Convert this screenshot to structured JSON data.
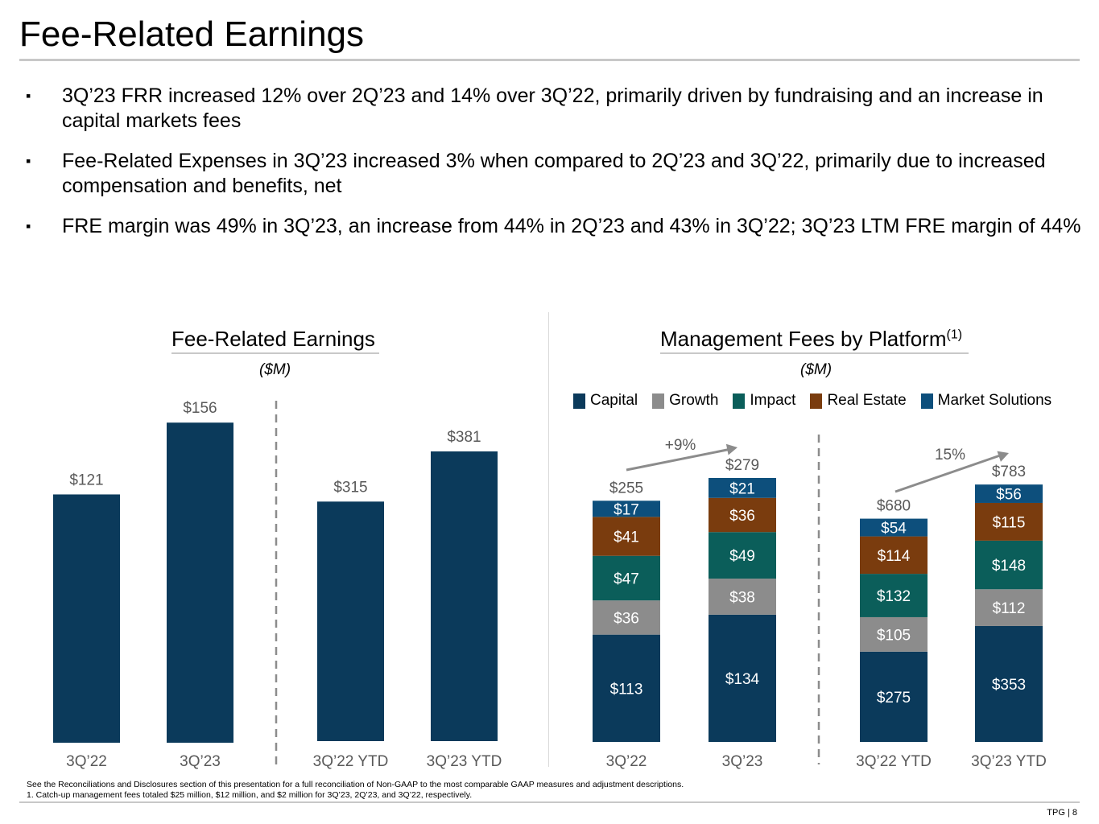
{
  "header": {
    "title": "Fee-Related Earnings"
  },
  "bullets": [
    {
      "marker": "▪",
      "text": "3Q’23 FRR increased 12% over 2Q’23 and 14% over 3Q’22, primarily driven by fundraising and an increase in capital markets fees"
    },
    {
      "marker": "▪",
      "text": "Fee-Related Expenses in 3Q’23 increased 3% when compared to 2Q’23 and 3Q’22, primarily due to increased compensation and benefits, net"
    },
    {
      "marker": "▪",
      "text": "FRE margin was 49% in 3Q’23, an increase from 44% in 2Q’23 and 43% in 3Q’22; 3Q’23 LTM FRE margin of 44%"
    }
  ],
  "colors": {
    "capital": "#0b3a5b",
    "growth": "#8c8c8c",
    "impact": "#0b5e5a",
    "real_estate": "#7a3c0e",
    "market_solutions": "#0d4f7c",
    "axis_text": "#595959",
    "arrow": "#8c8c8c"
  },
  "chart_data": [
    {
      "type": "bar",
      "title": "Fee-Related Earnings",
      "unit": "($M)",
      "groups": [
        {
          "categories": [
            "3Q’22",
            "3Q’23"
          ],
          "values": [
            121,
            156
          ],
          "labels": [
            "$121",
            "$156"
          ]
        },
        {
          "categories": [
            "3Q’22 YTD",
            "3Q’23 YTD"
          ],
          "values": [
            315,
            381
          ],
          "labels": [
            "$315",
            "$381"
          ]
        }
      ]
    },
    {
      "type": "bar",
      "stacked": true,
      "title": "Management Fees by Platform",
      "title_superscript": "(1)",
      "unit": "($M)",
      "legend": [
        "Capital",
        "Growth",
        "Impact",
        "Real Estate",
        "Market Solutions"
      ],
      "groups": [
        {
          "categories": [
            "3Q’22",
            "3Q’23"
          ],
          "series": [
            {
              "name": "Capital",
              "values": [
                113,
                134
              ],
              "labels": [
                "$113",
                "$134"
              ]
            },
            {
              "name": "Growth",
              "values": [
                36,
                38
              ],
              "labels": [
                "$36",
                "$38"
              ]
            },
            {
              "name": "Impact",
              "values": [
                47,
                49
              ],
              "labels": [
                "$47",
                "$49"
              ]
            },
            {
              "name": "Real Estate",
              "values": [
                41,
                36
              ],
              "labels": [
                "$41",
                "$36"
              ]
            },
            {
              "name": "Market Solutions",
              "values": [
                17,
                21
              ],
              "labels": [
                "$17",
                "$21"
              ]
            }
          ],
          "totals": [
            255,
            279
          ],
          "total_labels": [
            "$255",
            "$279"
          ],
          "growth_label": "+9%"
        },
        {
          "categories": [
            "3Q’22 YTD",
            "3Q’23 YTD"
          ],
          "series": [
            {
              "name": "Capital",
              "values": [
                275,
                353
              ],
              "labels": [
                "$275",
                "$353"
              ]
            },
            {
              "name": "Growth",
              "values": [
                105,
                112
              ],
              "labels": [
                "$105",
                "$112"
              ]
            },
            {
              "name": "Impact",
              "values": [
                132,
                148
              ],
              "labels": [
                "$132",
                "$148"
              ]
            },
            {
              "name": "Real Estate",
              "values": [
                114,
                115
              ],
              "labels": [
                "$114",
                "$115"
              ]
            },
            {
              "name": "Market Solutions",
              "values": [
                54,
                56
              ],
              "labels": [
                "$54",
                "$56"
              ]
            }
          ],
          "totals": [
            680,
            783
          ],
          "total_labels": [
            "$680",
            "$783"
          ],
          "growth_label": "15%"
        }
      ]
    }
  ],
  "footnotes": {
    "line1": "See the Reconciliations and Disclosures section of this presentation for a full reconciliation of Non-GAAP to the most comparable GAAP measures and adjustment descriptions.",
    "line2": "1. Catch-up management fees totaled $25 million, $12 million, and $2 million for 3Q’23, 2Q’23, and 3Q’22, respectively."
  },
  "footer": {
    "page": "TPG | 8"
  }
}
